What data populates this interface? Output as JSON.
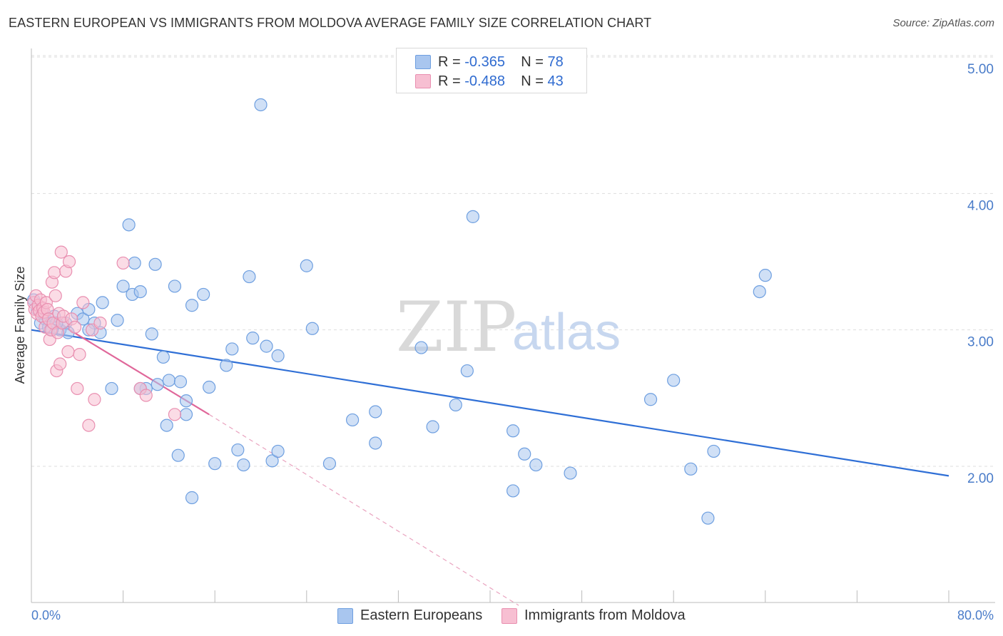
{
  "title": "EASTERN EUROPEAN VS IMMIGRANTS FROM MOLDOVA AVERAGE FAMILY SIZE CORRELATION CHART",
  "source": "Source: ZipAtlas.com",
  "legend": {
    "rows": [
      {
        "r_label": "R =",
        "r_value": "-0.365",
        "n_label": "N =",
        "n_value": "78",
        "color": "#a9c6ef",
        "border": "#6e9fe0"
      },
      {
        "r_label": "R =",
        "r_value": "-0.488",
        "n_label": "N =",
        "n_value": "43",
        "color": "#f7bfd2",
        "border": "#e98fb0"
      }
    ]
  },
  "bottom_legend": [
    {
      "label": "Eastern Europeans",
      "color": "#a9c6ef",
      "border": "#6e9fe0"
    },
    {
      "label": "Immigrants from Moldova",
      "color": "#f7bfd2",
      "border": "#e98fb0"
    }
  ],
  "watermark": {
    "zip": "ZIP",
    "atlas": "atlas"
  },
  "chart_data": {
    "type": "scatter",
    "title": "EASTERN EUROPEAN VS IMMIGRANTS FROM MOLDOVA AVERAGE FAMILY SIZE CORRELATION CHART",
    "xlabel": "",
    "ylabel": "Average Family Size",
    "xlim": [
      0,
      80
    ],
    "ylim": [
      1.0,
      5.1
    ],
    "x_tick_labels": [
      "0.0%",
      "80.0%"
    ],
    "y_ticks": [
      2.0,
      3.0,
      4.0,
      5.0
    ],
    "y_tick_labels": [
      "2.00",
      "3.00",
      "4.00",
      "5.00"
    ],
    "grid": true,
    "legend_position": "top-center",
    "series": [
      {
        "name": "Eastern Europeans",
        "color": "#6e9fe0",
        "fill": "#a9c6ef",
        "points": [
          [
            0.2,
            3.22
          ],
          [
            0.5,
            3.15
          ],
          [
            0.8,
            3.05
          ],
          [
            1.0,
            3.12
          ],
          [
            1.2,
            3.08
          ],
          [
            1.5,
            3.02
          ],
          [
            2.0,
            3.1
          ],
          [
            2.5,
            3.0
          ],
          [
            3.0,
            3.05
          ],
          [
            3.2,
            2.98
          ],
          [
            4.0,
            3.12
          ],
          [
            4.5,
            3.08
          ],
          [
            5.0,
            3.15
          ],
          [
            5.5,
            3.05
          ],
          [
            6.0,
            2.98
          ],
          [
            6.2,
            3.2
          ],
          [
            7.0,
            2.57
          ],
          [
            7.5,
            3.07
          ],
          [
            8.0,
            3.32
          ],
          [
            8.5,
            3.77
          ],
          [
            8.8,
            3.26
          ],
          [
            9.0,
            3.49
          ],
          [
            9.5,
            3.28
          ],
          [
            10.0,
            2.57
          ],
          [
            10.5,
            2.97
          ],
          [
            10.8,
            3.48
          ],
          [
            11.0,
            2.6
          ],
          [
            11.5,
            2.8
          ],
          [
            11.8,
            2.3
          ],
          [
            12.0,
            2.63
          ],
          [
            12.5,
            3.32
          ],
          [
            12.8,
            2.08
          ],
          [
            13.0,
            2.62
          ],
          [
            13.5,
            2.48
          ],
          [
            14.0,
            3.18
          ],
          [
            14.0,
            1.77
          ],
          [
            15.0,
            3.26
          ],
          [
            15.5,
            2.58
          ],
          [
            16.0,
            2.02
          ],
          [
            17.0,
            2.74
          ],
          [
            17.5,
            2.86
          ],
          [
            18.0,
            2.12
          ],
          [
            18.5,
            2.01
          ],
          [
            19.0,
            3.39
          ],
          [
            19.3,
            2.94
          ],
          [
            20.0,
            4.65
          ],
          [
            20.5,
            2.88
          ],
          [
            21.0,
            2.04
          ],
          [
            21.5,
            2.11
          ],
          [
            21.5,
            2.81
          ],
          [
            24.0,
            3.47
          ],
          [
            24.5,
            3.01
          ],
          [
            26.0,
            2.02
          ],
          [
            28.0,
            2.34
          ],
          [
            30.0,
            2.4
          ],
          [
            30.0,
            2.17
          ],
          [
            34.0,
            2.87
          ],
          [
            35.0,
            2.29
          ],
          [
            37.0,
            2.45
          ],
          [
            38.0,
            2.7
          ],
          [
            38.5,
            3.83
          ],
          [
            42.0,
            2.26
          ],
          [
            42.0,
            1.82
          ],
          [
            43.0,
            2.09
          ],
          [
            44.0,
            2.01
          ],
          [
            47.0,
            1.95
          ],
          [
            54.0,
            2.49
          ],
          [
            56.0,
            2.63
          ],
          [
            57.5,
            1.98
          ],
          [
            59.0,
            1.62
          ],
          [
            59.5,
            2.11
          ],
          [
            63.5,
            3.28
          ],
          [
            64.0,
            3.4
          ],
          [
            5.0,
            3.0
          ],
          [
            9.5,
            2.57
          ],
          [
            13.5,
            2.38
          ],
          [
            2.2,
            3.05
          ],
          [
            1.8,
            3.0
          ]
        ],
        "trend": {
          "x": [
            0,
            80
          ],
          "y": [
            3.0,
            1.93
          ]
        }
      },
      {
        "name": "Immigrants from Moldova",
        "color": "#e98fb0",
        "fill": "#f7bfd2",
        "points": [
          [
            0.2,
            3.2
          ],
          [
            0.3,
            3.15
          ],
          [
            0.4,
            3.25
          ],
          [
            0.5,
            3.12
          ],
          [
            0.6,
            3.18
          ],
          [
            0.7,
            3.14
          ],
          [
            0.8,
            3.22
          ],
          [
            0.9,
            3.1
          ],
          [
            1.0,
            3.16
          ],
          [
            1.1,
            3.13
          ],
          [
            1.2,
            3.02
          ],
          [
            1.3,
            3.2
          ],
          [
            1.4,
            3.15
          ],
          [
            1.5,
            3.08
          ],
          [
            1.6,
            2.93
          ],
          [
            1.7,
            3.0
          ],
          [
            1.8,
            3.35
          ],
          [
            1.9,
            3.05
          ],
          [
            2.0,
            3.42
          ],
          [
            2.1,
            3.25
          ],
          [
            2.2,
            2.7
          ],
          [
            2.3,
            2.98
          ],
          [
            2.4,
            3.12
          ],
          [
            2.5,
            2.75
          ],
          [
            2.6,
            3.57
          ],
          [
            2.7,
            3.05
          ],
          [
            2.8,
            3.1
          ],
          [
            3.0,
            3.43
          ],
          [
            3.2,
            2.84
          ],
          [
            3.3,
            3.5
          ],
          [
            3.5,
            3.08
          ],
          [
            3.8,
            3.02
          ],
          [
            4.0,
            2.57
          ],
          [
            4.2,
            2.82
          ],
          [
            4.5,
            3.2
          ],
          [
            5.0,
            2.3
          ],
          [
            5.3,
            3.0
          ],
          [
            5.5,
            2.49
          ],
          [
            6.0,
            3.05
          ],
          [
            8.0,
            3.49
          ],
          [
            9.5,
            2.57
          ],
          [
            10.0,
            2.52
          ],
          [
            12.5,
            2.38
          ]
        ],
        "trend": {
          "x": [
            0,
            15.5
          ],
          "y": [
            3.17,
            2.38
          ]
        },
        "trend_extension": {
          "x": [
            15.5,
            42.5
          ],
          "y": [
            2.38,
            0.98
          ]
        }
      }
    ]
  }
}
